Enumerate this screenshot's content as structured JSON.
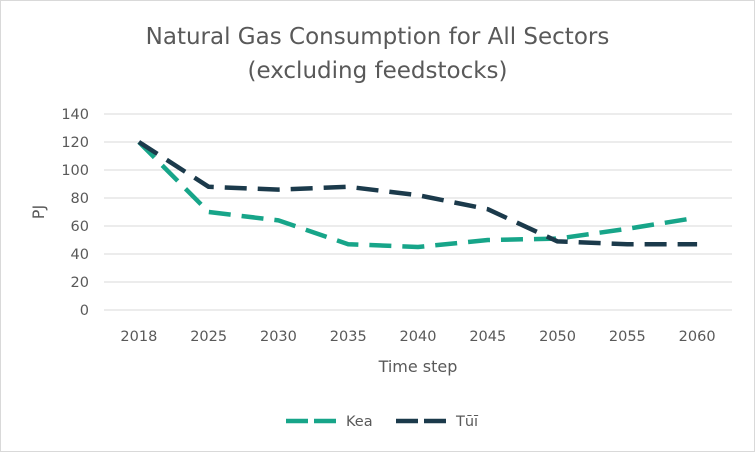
{
  "chart_data": {
    "type": "line",
    "title_line1": "Natural Gas Consumption for All Sectors",
    "title_line2": "(excluding feedstocks)",
    "xlabel": "Time step",
    "ylabel": "PJ",
    "categories": [
      "2018",
      "2025",
      "2030",
      "2035",
      "2040",
      "2045",
      "2050",
      "2055",
      "2060"
    ],
    "yticks": [
      "0",
      "20",
      "40",
      "60",
      "80",
      "100",
      "120",
      "140"
    ],
    "ylim": [
      0,
      140
    ],
    "grid": true,
    "legend_position": "bottom",
    "series": [
      {
        "name": "Kea",
        "color": "#17a589",
        "values": [
          120,
          70,
          64,
          47,
          45,
          50,
          51,
          58,
          66
        ]
      },
      {
        "name": "Tūī",
        "color": "#1b3a4b",
        "values": [
          120,
          88,
          86,
          88,
          82,
          72,
          49,
          47,
          47
        ]
      }
    ]
  }
}
